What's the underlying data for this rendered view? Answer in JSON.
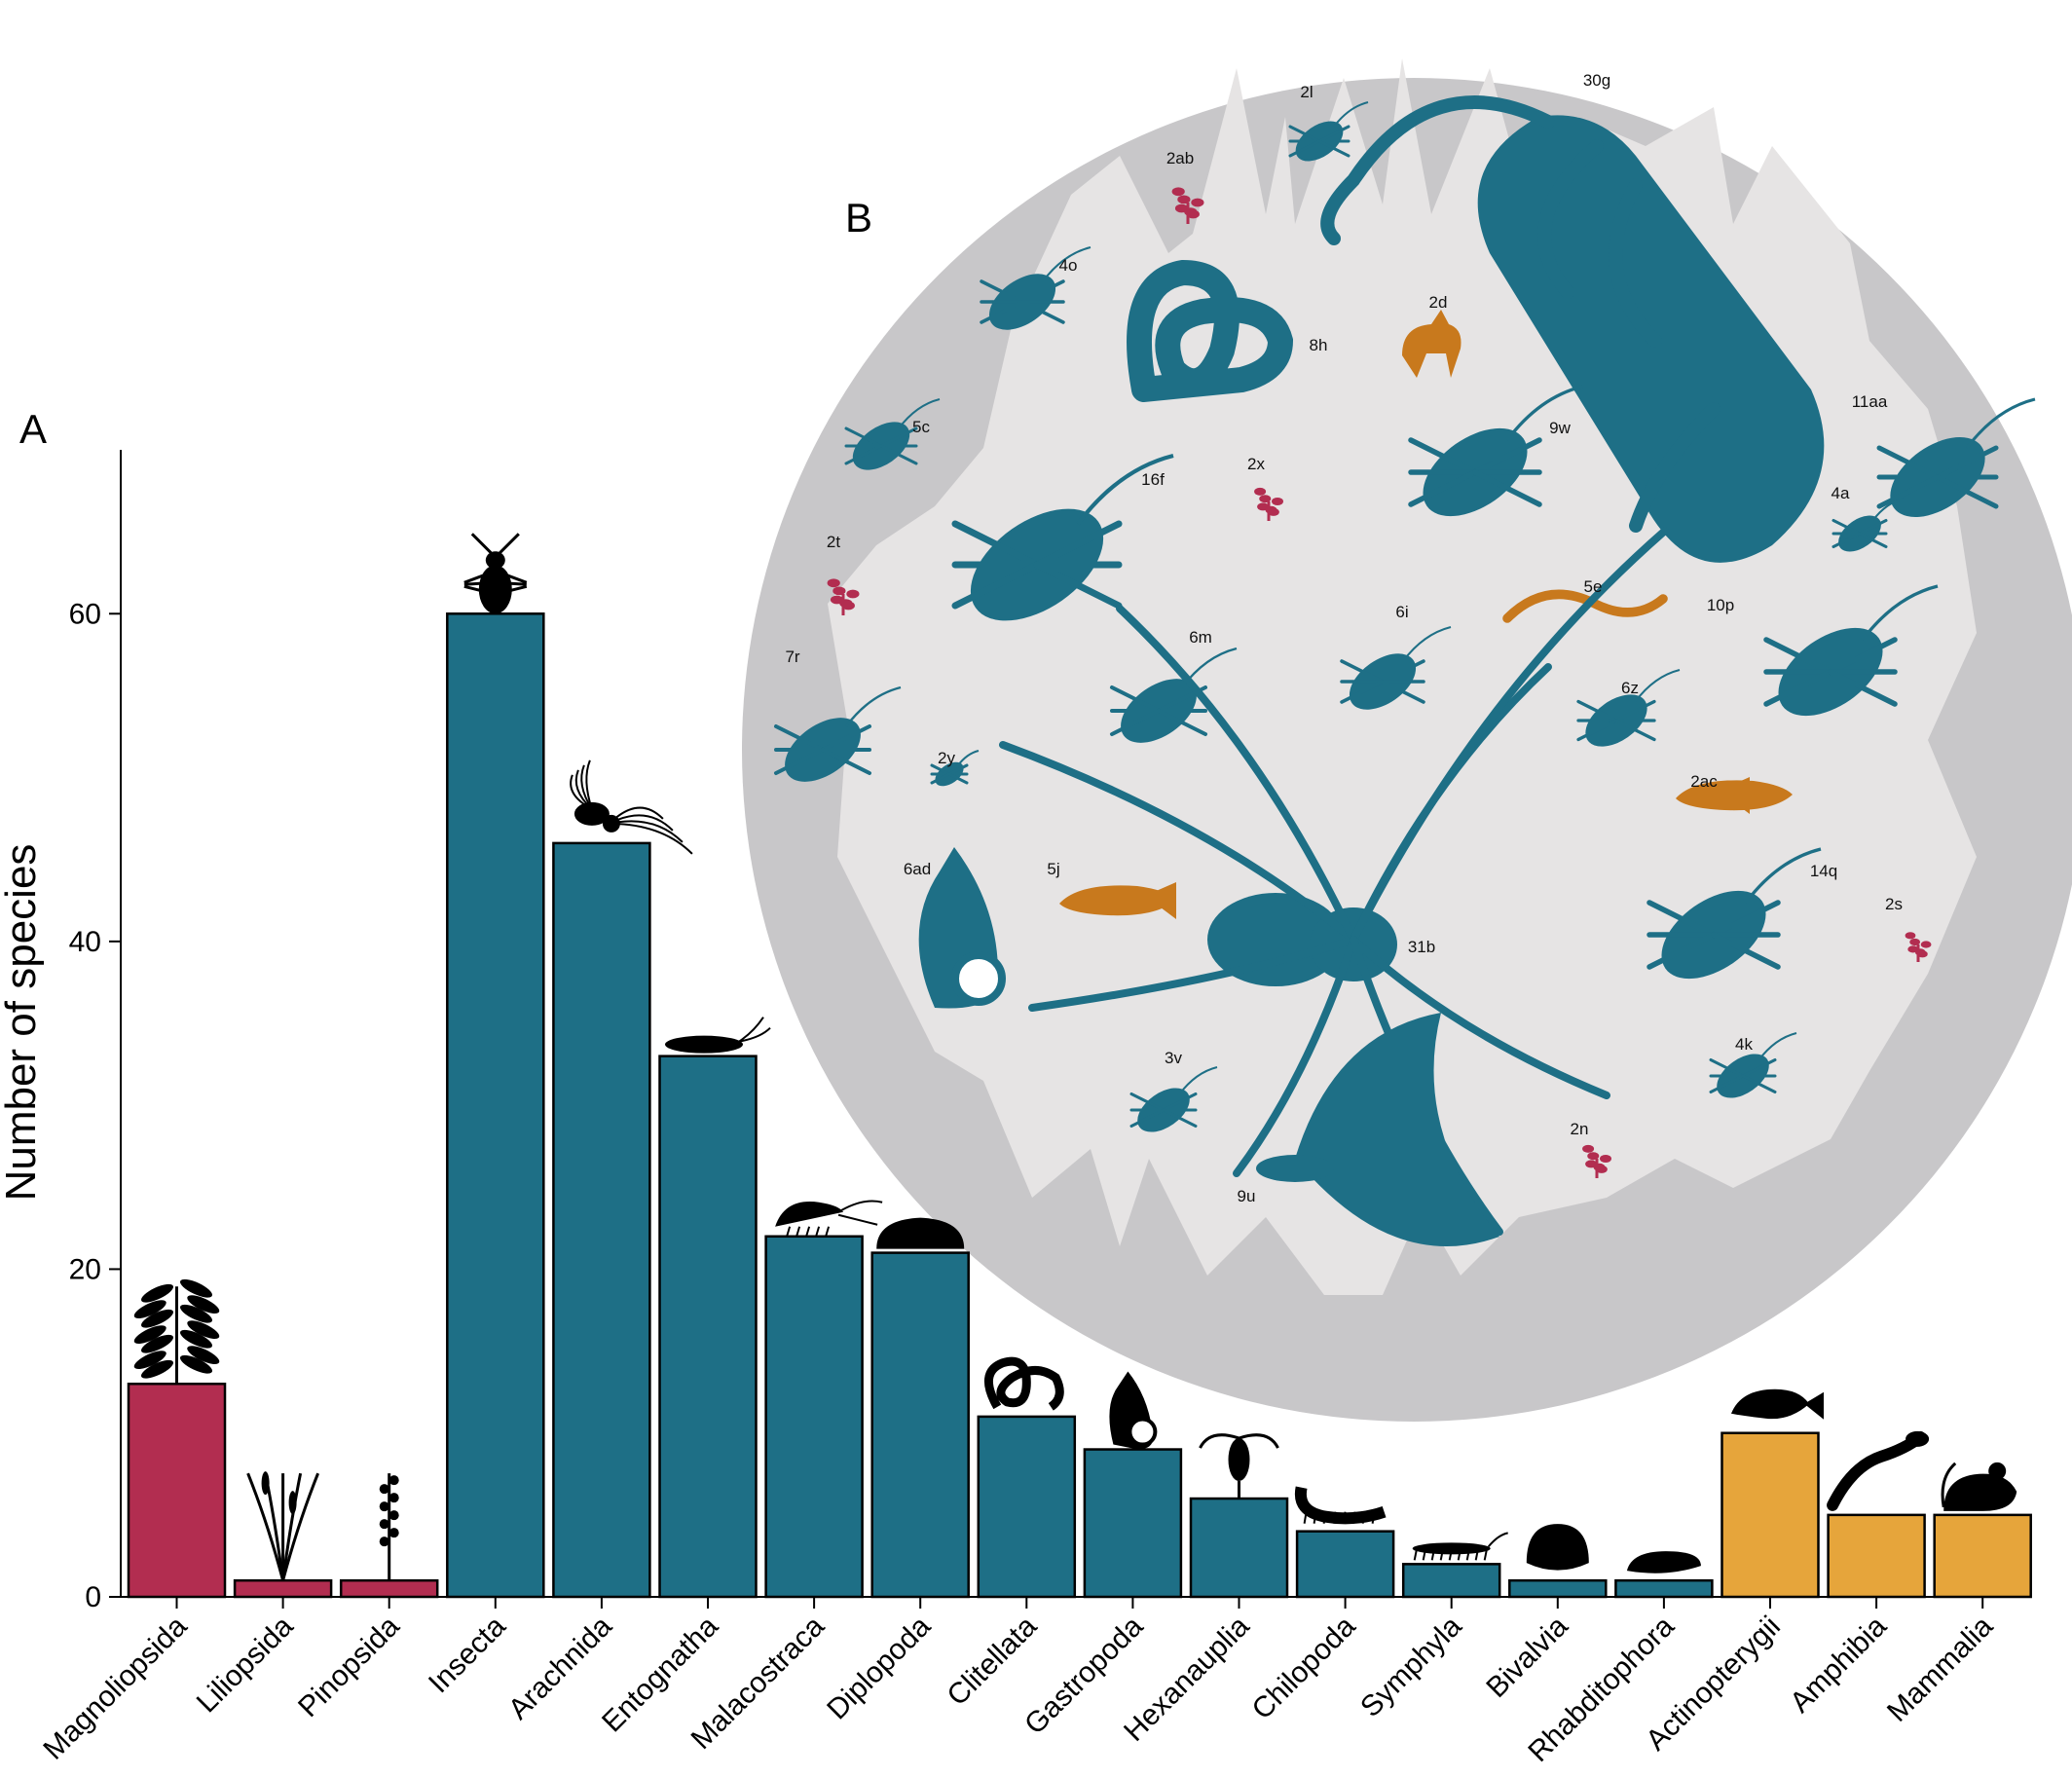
{
  "figure": {
    "panel_a_letter": "A",
    "panel_b_letter": "B"
  },
  "colors": {
    "plants": "#b22d50",
    "invertebrates": "#1e6f86",
    "vertebrates": "#e6a53b",
    "circle_outer": "#c8c7c9",
    "circle_inner": "#e6e4e4",
    "orange_silhouette": "#c8791d"
  },
  "chart_data": {
    "type": "bar",
    "ylabel": "Number of species",
    "xlabel": "",
    "ylim": [
      0,
      70
    ],
    "yticks": [
      0,
      20,
      40,
      60
    ],
    "grid": false,
    "categories": [
      "Magnoliopsida",
      "Liliopsida",
      "Pinopsida",
      "Insecta",
      "Arachnida",
      "Entognatha",
      "Malacostraca",
      "Diplopoda",
      "Clitellata",
      "Gastropoda",
      "Hexanauplia",
      "Chilopoda",
      "Symphyla",
      "Bivalvia",
      "Rhabditophora",
      "Actinopterygii",
      "Amphibia",
      "Mammalia"
    ],
    "values": [
      13,
      1,
      1,
      60,
      46,
      33,
      22,
      21,
      11,
      9,
      6,
      4,
      2,
      1,
      1,
      10,
      5,
      5
    ],
    "groups": [
      "plants",
      "plants",
      "plants",
      "invertebrates",
      "invertebrates",
      "invertebrates",
      "invertebrates",
      "invertebrates",
      "invertebrates",
      "invertebrates",
      "invertebrates",
      "invertebrates",
      "invertebrates",
      "invertebrates",
      "invertebrates",
      "vertebrates",
      "vertebrates",
      "vertebrates"
    ],
    "icons": [
      "plant-icon",
      "reed-icon",
      "conifer-flower-icon",
      "beetle-icon",
      "spider-icon",
      "springtail-icon",
      "shrimp-icon",
      "millipede-icon",
      "worm-icon",
      "snail-icon",
      "copepod-icon",
      "centipede-icon",
      "symphylan-icon",
      "clam-icon",
      "flatworm-icon",
      "fish-icon",
      "salamander-icon",
      "mouse-icon"
    ]
  },
  "panel_b": {
    "labels": [
      {
        "text": "30g",
        "color": "invertebrates",
        "icon": "pseudoscorpion-icon"
      },
      {
        "text": "2l",
        "color": "invertebrates",
        "icon": "springtail-icon"
      },
      {
        "text": "2ab",
        "color": "plants",
        "icon": "tree-icon"
      },
      {
        "text": "4o",
        "color": "invertebrates",
        "icon": "aphid-icon"
      },
      {
        "text": "8h",
        "color": "invertebrates",
        "icon": "worm-icon"
      },
      {
        "text": "2d",
        "color": "vertebrates",
        "icon": "fox-icon"
      },
      {
        "text": "11aa",
        "color": "invertebrates",
        "icon": "millipede-icon"
      },
      {
        "text": "5c",
        "color": "invertebrates",
        "icon": "cockroach-icon"
      },
      {
        "text": "16f",
        "color": "invertebrates",
        "icon": "beetle-icon"
      },
      {
        "text": "2x",
        "color": "plants",
        "icon": "leaf-icon"
      },
      {
        "text": "9w",
        "color": "invertebrates",
        "icon": "mite-icon"
      },
      {
        "text": "4a",
        "color": "invertebrates",
        "icon": "amphipod-icon"
      },
      {
        "text": "2t",
        "color": "plants",
        "icon": "herb-icon"
      },
      {
        "text": "5e",
        "color": "vertebrates",
        "icon": "salamander-icon"
      },
      {
        "text": "10p",
        "color": "invertebrates",
        "icon": "ant-icon"
      },
      {
        "text": "7r",
        "color": "invertebrates",
        "icon": "larva-icon"
      },
      {
        "text": "6m",
        "color": "invertebrates",
        "icon": "bug-icon"
      },
      {
        "text": "6i",
        "color": "invertebrates",
        "icon": "copepod-icon"
      },
      {
        "text": "6z",
        "color": "invertebrates",
        "icon": "grasshopper-icon"
      },
      {
        "text": "2y",
        "color": "invertebrates",
        "icon": "nematode-icon"
      },
      {
        "text": "2ac",
        "color": "vertebrates",
        "icon": "fish-icon"
      },
      {
        "text": "6ad",
        "color": "invertebrates",
        "icon": "snail-icon"
      },
      {
        "text": "5j",
        "color": "vertebrates",
        "icon": "guppy-icon"
      },
      {
        "text": "14q",
        "color": "invertebrates",
        "icon": "woodlouse-icon"
      },
      {
        "text": "2s",
        "color": "plants",
        "icon": "flower-icon"
      },
      {
        "text": "31b",
        "color": "invertebrates",
        "icon": "spider-icon"
      },
      {
        "text": "3v",
        "color": "invertebrates",
        "icon": "centipede-icon"
      },
      {
        "text": "4k",
        "color": "invertebrates",
        "icon": "shrimp-icon"
      },
      {
        "text": "2n",
        "color": "plants",
        "icon": "fern-icon"
      },
      {
        "text": "9u",
        "color": "invertebrates",
        "icon": "butterfly-icon"
      }
    ]
  }
}
